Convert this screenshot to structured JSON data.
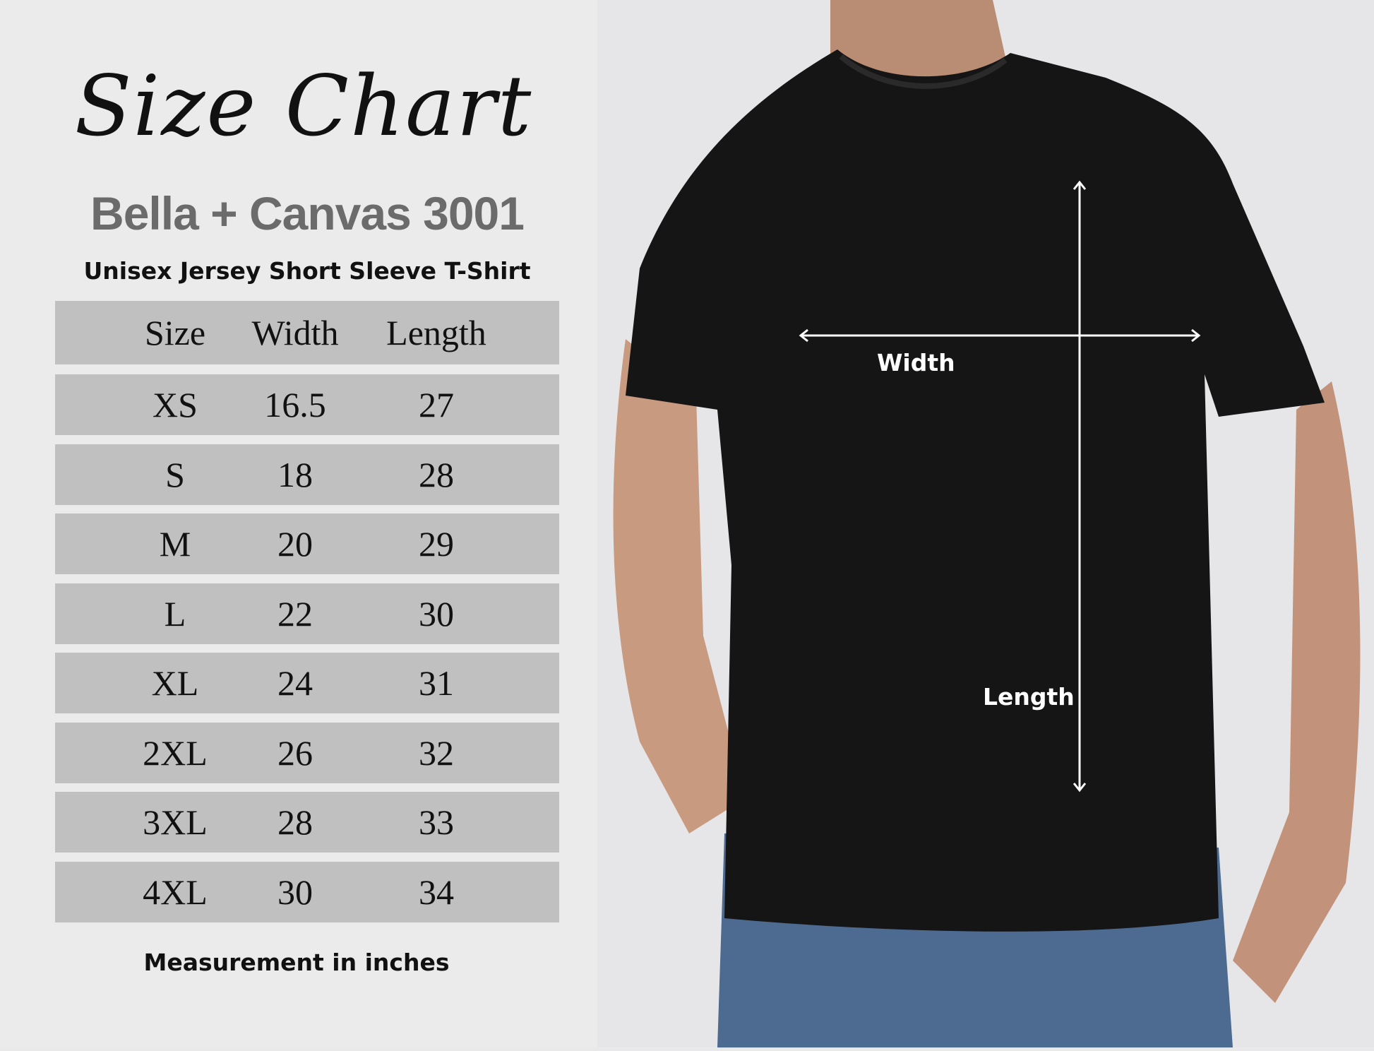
{
  "title": "Size Chart",
  "brand": "Bella  + Canvas 3001",
  "subtitle": "Unisex Jersey Short Sleeve T-Shirt",
  "table": {
    "headers": [
      "Size",
      "Width",
      "Length"
    ],
    "rows": [
      [
        "XS",
        "16.5",
        "27"
      ],
      [
        "S",
        "18",
        "28"
      ],
      [
        "M",
        "20",
        "29"
      ],
      [
        "L",
        "22",
        "30"
      ],
      [
        "XL",
        "24",
        "31"
      ],
      [
        "2XL",
        "26",
        "32"
      ],
      [
        "3XL",
        "28",
        "33"
      ],
      [
        "4XL",
        "30",
        "34"
      ]
    ]
  },
  "footer": "Measurement in inches",
  "diagram": {
    "width_label": "Width",
    "length_label": "Length"
  },
  "colors": {
    "row_bg": "#c0c0c0",
    "brand_text": "#6b6b6b",
    "shirt": "#151515",
    "background": "#ebebec"
  }
}
